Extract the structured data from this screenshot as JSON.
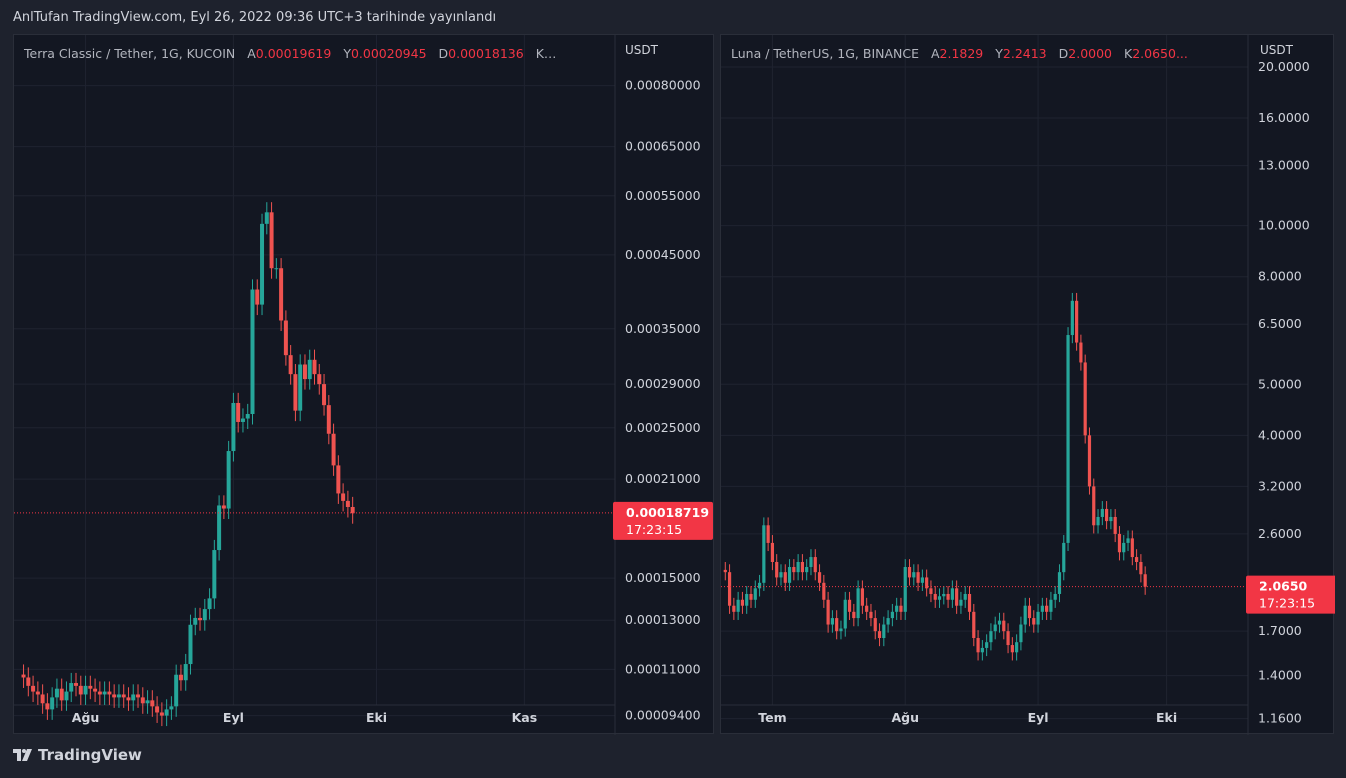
{
  "published": "AnlTufan TradingView.com, Eyl 26, 2022 09:36 UTC+3 tarihinde yayınlandı",
  "footer": {
    "logo": "TradingView"
  },
  "colors": {
    "up": "#26a69a",
    "down": "#ef5350",
    "grid": "#1f2330",
    "tag": "#f23645"
  },
  "chart_data": [
    {
      "type": "candlestick",
      "title": "Terra Classic / Tether, 1G, KUCOIN",
      "unit": "USDT",
      "ohlc_labels": {
        "o": "A",
        "h": "Y",
        "l": "D",
        "c": "K"
      },
      "ohlc": {
        "o": "0.00019619",
        "h": "0.00020945",
        "l": "0.00018136",
        "c": "K…"
      },
      "scale": "log",
      "ylim": [
        8.8e-05,
        0.00095
      ],
      "yticks": [
        "0.00080000",
        "0.00065000",
        "0.00055000",
        "0.00045000",
        "0.00035000",
        "0.00029000",
        "0.00025000",
        "0.00021000",
        "0.00015000",
        "0.00013000",
        "0.00011000",
        "0.00009400"
      ],
      "xticks": [
        {
          "label": "Ağu",
          "date": "2022-08-01"
        },
        {
          "label": "Eyl",
          "date": "2022-09-01"
        },
        {
          "label": "Eki",
          "date": "2022-10-01"
        },
        {
          "label": "Kas",
          "date": "2022-11-01"
        }
      ],
      "xlim": [
        "2022-07-17",
        "2022-11-20"
      ],
      "start": "2022-07-19",
      "closes": [
        0.000107,
        0.000104,
        0.000102,
        0.000101,
        9.8e-05,
        9.6e-05,
        0.0001,
        0.000103,
        9.9e-05,
        0.000102,
        0.000105,
        0.000104,
        0.000101,
        0.000104,
        0.000103,
        0.000102,
        0.000101,
        0.000102,
        0.000101,
        0.0001,
        0.000101,
        0.0001,
        9.9e-05,
        0.000101,
        0.0001,
        9.8e-05,
        9.9e-05,
        9.7e-05,
        9.5e-05,
        9.4e-05,
        9.6e-05,
        9.7e-05,
        0.000108,
        0.000106,
        0.000112,
        0.000128,
        0.000131,
        0.00013,
        0.000135,
        0.00014,
        0.000165,
        0.000192,
        0.00019,
        0.000231,
        0.000272,
        0.000255,
        0.000258,
        0.000262,
        0.0004,
        0.00038,
        0.0005,
        0.00052,
        0.00043,
        0.00043,
        0.00036,
        0.00032,
        0.0003,
        0.000265,
        0.00031,
        0.000295,
        0.000315,
        0.0003,
        0.00029,
        0.00027,
        0.000245,
        0.00022,
        0.0002,
        0.000195,
        0.000191,
        0.000187
      ],
      "last_price": "0.00018719",
      "countdown": "17:23:15"
    },
    {
      "type": "candlestick",
      "title": "Luna / TetherUS, 1G, BINANCE",
      "unit": "USDT",
      "ohlc_labels": {
        "o": "A",
        "h": "Y",
        "l": "D",
        "c": "K"
      },
      "ohlc": {
        "o": "2.1829",
        "h": "2.2413",
        "l": "2.0000",
        "c": "2.0650..."
      },
      "scale": "log",
      "ylim": [
        1.08,
        23
      ],
      "yticks": [
        "20.0000",
        "16.0000",
        "13.0000",
        "10.0000",
        "8.0000",
        "6.5000",
        "5.0000",
        "4.0000",
        "3.2000",
        "2.6000",
        "1.7000",
        "1.4000",
        "1.1600"
      ],
      "xticks": [
        {
          "label": "Tem",
          "date": "2022-07-01"
        },
        {
          "label": "Ağu",
          "date": "2022-08-01"
        },
        {
          "label": "Eyl",
          "date": "2022-09-01"
        },
        {
          "label": "Eki",
          "date": "2022-10-01"
        }
      ],
      "xlim": [
        "2022-06-19",
        "2022-10-20"
      ],
      "start": "2022-06-20",
      "closes": [
        2.2,
        1.9,
        1.85,
        1.95,
        1.9,
        2.0,
        1.95,
        2.05,
        2.1,
        2.7,
        2.5,
        2.3,
        2.15,
        2.2,
        2.1,
        2.25,
        2.2,
        2.3,
        2.2,
        2.25,
        2.35,
        2.2,
        2.1,
        1.95,
        1.75,
        1.8,
        1.7,
        1.72,
        1.95,
        1.85,
        1.8,
        2.05,
        1.9,
        1.85,
        1.8,
        1.7,
        1.65,
        1.75,
        1.8,
        1.85,
        1.9,
        1.85,
        2.25,
        2.15,
        2.2,
        2.1,
        2.15,
        2.05,
        2.0,
        1.95,
        1.98,
        2.0,
        1.95,
        2.05,
        1.9,
        1.95,
        2.0,
        1.85,
        1.65,
        1.55,
        1.58,
        1.62,
        1.7,
        1.75,
        1.78,
        1.7,
        1.6,
        1.55,
        1.62,
        1.75,
        1.9,
        1.8,
        1.75,
        1.85,
        1.9,
        1.85,
        1.95,
        2.0,
        2.2,
        2.5,
        6.2,
        7.2,
        6.0,
        5.5,
        4.0,
        3.2,
        2.7,
        2.8,
        2.9,
        2.75,
        2.8,
        2.6,
        2.4,
        2.5,
        2.55,
        2.35,
        2.3,
        2.18,
        2.065
      ],
      "last_price": "2.0650",
      "countdown": "17:23:15"
    }
  ]
}
